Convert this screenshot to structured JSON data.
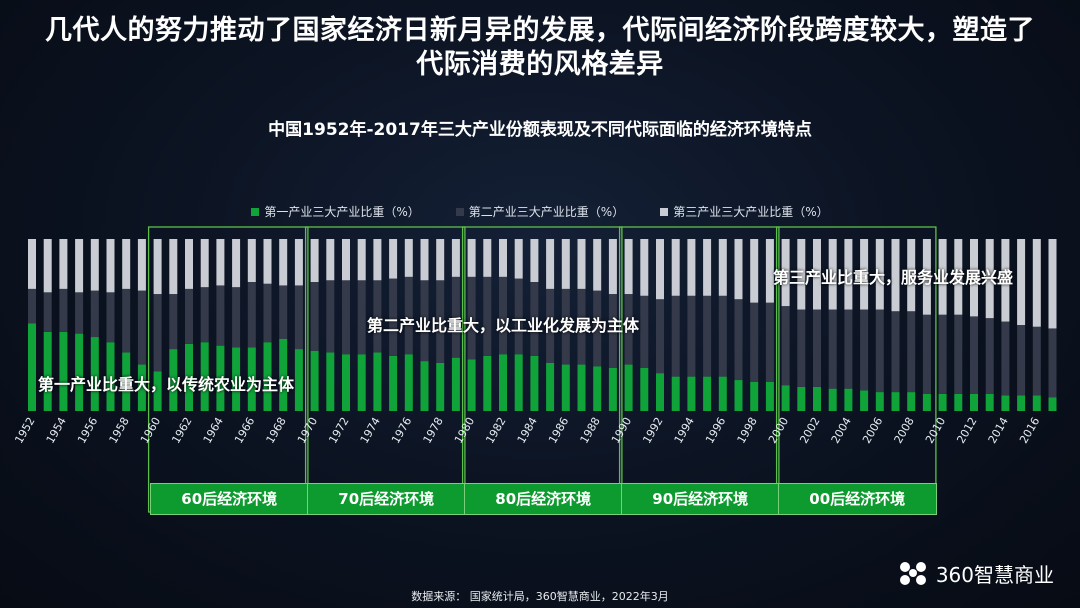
{
  "header": {
    "title_line1": "几代人的努力推动了国家经济日新月异的发展，代际间经济阶段跨度较大，塑造了",
    "title_line2": "代际消费的风格差异",
    "subtitle": "中国1952年-2017年三大产业份额表现及不同代际面临的经济环境特点"
  },
  "colors": {
    "primary": "#10a33a",
    "secondary": "#343a4a",
    "tertiary": "#c9cdd3",
    "era_fill": "#0d9a2e"
  },
  "annotations": {
    "primary": "第一产业比重大，以传统农业为主体",
    "secondary": "第二产业比重大，以工业化发展为主体",
    "tertiary": "第三产业比重大，服务业发展兴盛"
  },
  "eras": [
    {
      "label": "60后经济环境",
      "start": 1960,
      "end": 1969
    },
    {
      "label": "70后经济环境",
      "start": 1970,
      "end": 1979
    },
    {
      "label": "80后经济环境",
      "start": 1980,
      "end": 1989
    },
    {
      "label": "90后经济环境",
      "start": 1990,
      "end": 1999
    },
    {
      "label": "00后经济环境",
      "start": 2000,
      "end": 2009
    }
  ],
  "source": "数据来源：  国家统计局，360智慧商业，2022年3月",
  "logo": {
    "text": "360智慧商业",
    "icon": "360-flower-icon"
  },
  "chart_data": {
    "type": "bar",
    "stacked": true,
    "legend_position": "top",
    "x": [
      1952,
      1953,
      1954,
      1955,
      1956,
      1957,
      1958,
      1959,
      1960,
      1961,
      1962,
      1963,
      1964,
      1965,
      1966,
      1967,
      1968,
      1969,
      1970,
      1971,
      1972,
      1973,
      1974,
      1975,
      1976,
      1977,
      1978,
      1979,
      1980,
      1981,
      1982,
      1983,
      1984,
      1985,
      1986,
      1987,
      1988,
      1989,
      1990,
      1991,
      1992,
      1993,
      1994,
      1995,
      1996,
      1997,
      1998,
      1999,
      2000,
      2001,
      2002,
      2003,
      2004,
      2005,
      2006,
      2007,
      2008,
      2009,
      2010,
      2011,
      2012,
      2013,
      2014,
      2015,
      2016,
      2017
    ],
    "x_tick_labels": [
      "1952",
      "1954",
      "1956",
      "1958",
      "1960",
      "1962",
      "1964",
      "1966",
      "1968",
      "1970",
      "1972",
      "1974",
      "1976",
      "1978",
      "1980",
      "1982",
      "1984",
      "1986",
      "1988",
      "1990",
      "1992",
      "1994",
      "1996",
      "1998",
      "2000",
      "2002",
      "2004",
      "2006",
      "2008",
      "2010",
      "2012",
      "2014",
      "2016"
    ],
    "ylim": [
      0,
      100
    ],
    "series": [
      {
        "name": "第一产业三大产业比重（%）",
        "values": [
          51,
          46,
          46,
          45,
          43,
          40,
          34,
          27,
          23,
          36,
          39,
          40,
          38,
          37,
          37,
          40,
          42,
          36,
          35,
          34,
          33,
          33,
          34,
          32,
          33,
          29,
          28,
          31,
          30,
          32,
          33,
          33,
          32,
          28,
          27,
          27,
          26,
          25,
          27,
          25,
          22,
          20,
          20,
          20,
          20,
          18,
          17,
          17,
          15,
          14,
          14,
          13,
          13,
          12,
          11,
          11,
          11,
          10,
          10,
          10,
          10,
          10,
          9,
          9,
          9,
          8
        ]
      },
      {
        "name": "第二产业三大产业比重（%）",
        "values": [
          20,
          23,
          25,
          24,
          27,
          29,
          37,
          43,
          45,
          32,
          32,
          32,
          35,
          35,
          38,
          34,
          31,
          37,
          40,
          42,
          43,
          43,
          42,
          45,
          45,
          47,
          48,
          47,
          48,
          46,
          45,
          44,
          43,
          43,
          44,
          44,
          44,
          43,
          41,
          42,
          43,
          47,
          47,
          47,
          47,
          47,
          46,
          46,
          46,
          45,
          45,
          46,
          46,
          47,
          48,
          47,
          47,
          46,
          46,
          46,
          45,
          44,
          43,
          41,
          40,
          40
        ]
      },
      {
        "name": "第三产业三大产业比重（%）",
        "values": [
          29,
          31,
          29,
          31,
          30,
          31,
          29,
          30,
          32,
          32,
          29,
          28,
          27,
          28,
          25,
          26,
          27,
          27,
          25,
          24,
          24,
          24,
          24,
          23,
          22,
          24,
          24,
          22,
          22,
          22,
          22,
          23,
          25,
          29,
          29,
          29,
          30,
          32,
          32,
          33,
          35,
          33,
          33,
          33,
          33,
          35,
          37,
          37,
          39,
          41,
          41,
          41,
          41,
          41,
          41,
          42,
          42,
          44,
          44,
          44,
          45,
          46,
          48,
          50,
          51,
          52
        ]
      }
    ]
  }
}
